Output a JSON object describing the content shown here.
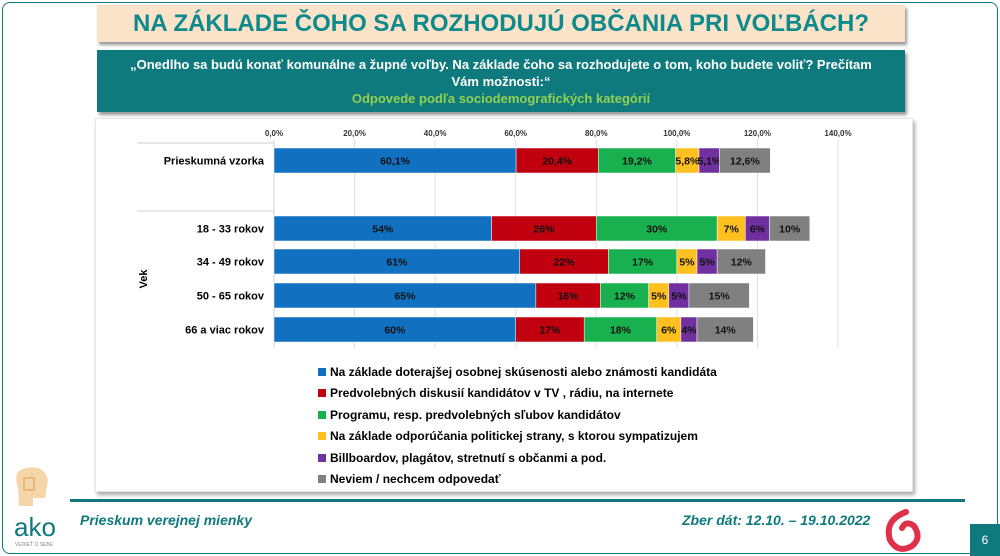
{
  "slide": {
    "title": "NA ZÁKLADE ČOHO SA ROZHODUJÚ OBČANIA PRI VOĽBÁCH?",
    "question": "„Onedlho sa budú konať komunálne a župné voľby. Na základe čoho sa rozhodujete o tom, koho budete voliť? Prečítam Vám možnosti:“",
    "subtitle": "Odpovede podľa sociodemografických kategórií"
  },
  "footer": {
    "left": "Prieskum verejnej mienky",
    "right": "Zber dát: 12.10. – 19.10.2022",
    "page": "6",
    "logo_text": "ako",
    "logo_tagline": "VEDIEŤ O SEBE"
  },
  "chart_data": {
    "type": "bar",
    "orientation": "horizontal",
    "stacked": true,
    "xlim": [
      0,
      140
    ],
    "xticks": [
      "0,0%",
      "20,0%",
      "40,0%",
      "60,0%",
      "80,0%",
      "100,0%",
      "120,0%",
      "140,0%"
    ],
    "group_label": "Vek",
    "grid": true,
    "legend_placement": "bottom",
    "categories": [
      "Prieskumná vzorka",
      "18 - 33 rokov",
      "34 - 49 rokov",
      "50 - 65 rokov",
      "66 a viac rokov"
    ],
    "series": [
      {
        "name": "Na základe doterajšej osobnej skúsenosti alebo známosti kandidáta",
        "color": "#1170c0",
        "values": [
          60.1,
          54,
          61,
          65,
          60
        ],
        "labels": [
          "60,1%",
          "54%",
          "61%",
          "65%",
          "60%"
        ]
      },
      {
        "name": "Predvolebných diskusií kandidátov v TV , rádiu, na internete",
        "color": "#c0000f",
        "values": [
          20.4,
          26,
          22,
          16,
          17
        ],
        "labels": [
          "20,4%",
          "26%",
          "22%",
          "16%",
          "17%"
        ]
      },
      {
        "name": "Programu, resp. predvolebných sľubov kandidátov",
        "color": "#19b050",
        "values": [
          19.2,
          30,
          17,
          12,
          18
        ],
        "labels": [
          "19,2%",
          "30%",
          "17%",
          "12%",
          "18%"
        ]
      },
      {
        "name": "Na základe odporúčania politickej strany, s ktorou sympatizujem",
        "color": "#ffc020",
        "values": [
          5.8,
          7,
          5,
          5,
          6
        ],
        "labels": [
          "5,8%",
          "7%",
          "5%",
          "5%",
          "6%"
        ]
      },
      {
        "name": "Billboardov, plagátov, stretnutí s občanmi a pod.",
        "color": "#7030a0",
        "values": [
          5.1,
          6,
          5,
          5,
          4
        ],
        "labels": [
          "5,1%",
          "6%",
          "5%",
          "5%",
          "4%"
        ]
      },
      {
        "name": "Neviem / nechcem odpovedať",
        "color": "#808080",
        "values": [
          12.6,
          10,
          12,
          15,
          14
        ],
        "labels": [
          "12,6%",
          "10%",
          "12%",
          "15%",
          "14%"
        ]
      }
    ]
  }
}
